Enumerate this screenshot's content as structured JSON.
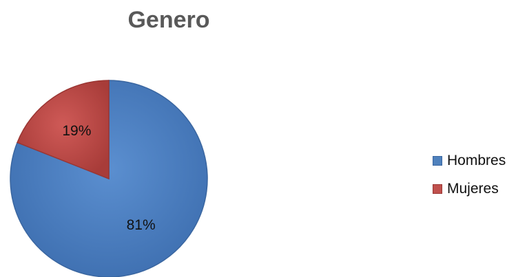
{
  "chart_data": {
    "type": "pie",
    "title": "Genero",
    "categories": [
      "Hombres",
      "Mujeres"
    ],
    "values": [
      81,
      19
    ],
    "labels": [
      "81%",
      "19%"
    ],
    "colors": [
      "#4f81bd",
      "#c0504d"
    ],
    "legend_position": "right"
  }
}
